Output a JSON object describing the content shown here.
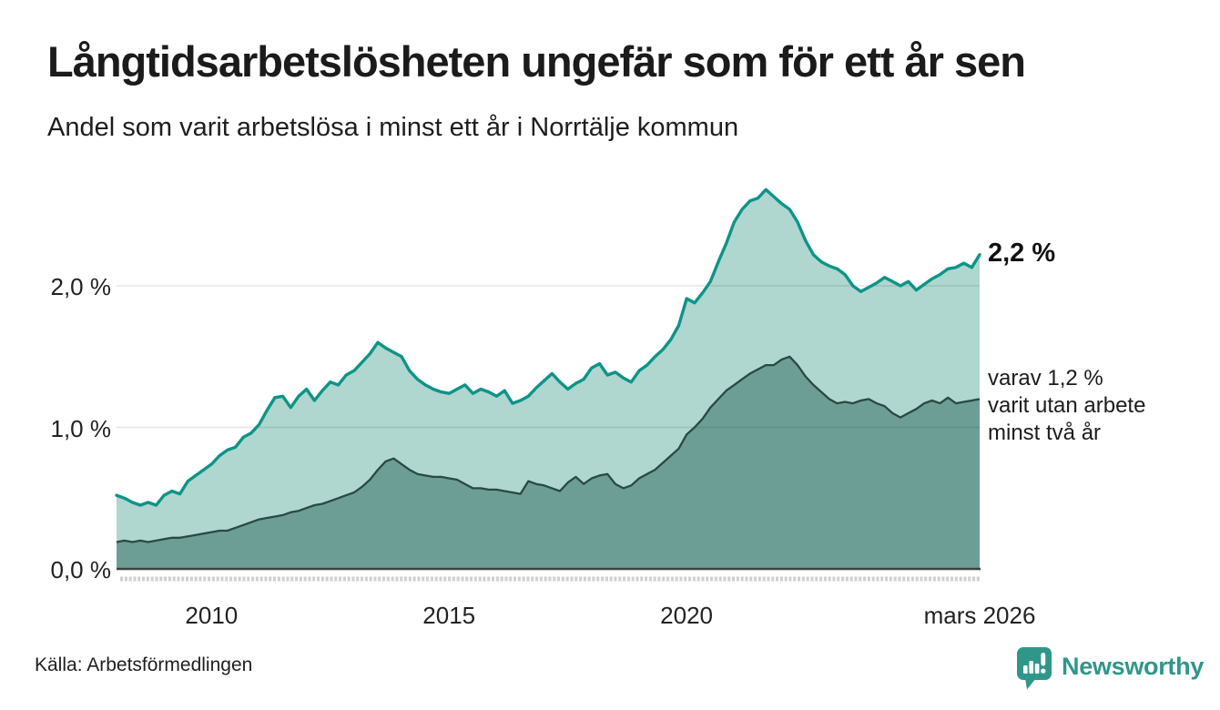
{
  "header": {
    "title": "Långtidsarbetslösheten ungefär som för ett år sen",
    "subtitle": "Andel som varit arbetslösa i minst ett år i Norrtälje kommun"
  },
  "chart_data": {
    "type": "area",
    "title": "Långtidsarbetslösheten ungefär som för ett år sen",
    "subtitle": "Andel som varit arbetslösa i minst ett år i Norrtälje kommun",
    "unit": "%",
    "xlim": [
      2008.0,
      2026.17
    ],
    "ylim": [
      0,
      2.8
    ],
    "grid": "horizontal",
    "x_frequency": "every 2 months (estimated from monthly chart)",
    "series": [
      {
        "name": "Andel arbetslösa minst ett år",
        "line_color": "#0d9488",
        "fill_color": "#afd6cf",
        "end_value_label": "2,2 %",
        "values": [
          0.52,
          0.5,
          0.47,
          0.45,
          0.47,
          0.45,
          0.52,
          0.55,
          0.53,
          0.62,
          0.66,
          0.7,
          0.74,
          0.8,
          0.84,
          0.86,
          0.93,
          0.96,
          1.02,
          1.12,
          1.21,
          1.22,
          1.14,
          1.22,
          1.27,
          1.19,
          1.26,
          1.32,
          1.3,
          1.37,
          1.4,
          1.46,
          1.52,
          1.6,
          1.56,
          1.53,
          1.5,
          1.4,
          1.34,
          1.3,
          1.27,
          1.25,
          1.24,
          1.27,
          1.3,
          1.24,
          1.27,
          1.25,
          1.22,
          1.26,
          1.17,
          1.19,
          1.22,
          1.28,
          1.33,
          1.38,
          1.32,
          1.27,
          1.31,
          1.34,
          1.42,
          1.45,
          1.37,
          1.39,
          1.35,
          1.32,
          1.4,
          1.44,
          1.5,
          1.55,
          1.62,
          1.72,
          1.91,
          1.88,
          1.95,
          2.03,
          2.17,
          2.3,
          2.45,
          2.54,
          2.6,
          2.62,
          2.68,
          2.63,
          2.58,
          2.54,
          2.45,
          2.32,
          2.22,
          2.17,
          2.14,
          2.12,
          2.08,
          2.0,
          1.96,
          1.99,
          2.02,
          2.06,
          2.03,
          2.0,
          2.03,
          1.97,
          2.01,
          2.05,
          2.08,
          2.12,
          2.13,
          2.16,
          2.13,
          2.22
        ]
      },
      {
        "name": "varav utan arbete minst två år",
        "line_color": "#284a43",
        "fill_color": "#6d9e95",
        "end_value_label": "1,2 %",
        "values": [
          0.19,
          0.2,
          0.19,
          0.2,
          0.19,
          0.2,
          0.21,
          0.22,
          0.22,
          0.23,
          0.24,
          0.25,
          0.26,
          0.27,
          0.27,
          0.29,
          0.31,
          0.33,
          0.35,
          0.36,
          0.37,
          0.38,
          0.4,
          0.41,
          0.43,
          0.45,
          0.46,
          0.48,
          0.5,
          0.52,
          0.54,
          0.58,
          0.63,
          0.7,
          0.76,
          0.78,
          0.74,
          0.7,
          0.67,
          0.66,
          0.65,
          0.65,
          0.64,
          0.63,
          0.6,
          0.57,
          0.57,
          0.56,
          0.56,
          0.55,
          0.54,
          0.53,
          0.62,
          0.6,
          0.59,
          0.57,
          0.55,
          0.61,
          0.65,
          0.6,
          0.64,
          0.66,
          0.67,
          0.6,
          0.57,
          0.59,
          0.64,
          0.67,
          0.7,
          0.75,
          0.8,
          0.85,
          0.95,
          1.0,
          1.06,
          1.14,
          1.2,
          1.26,
          1.3,
          1.34,
          1.38,
          1.41,
          1.44,
          1.44,
          1.48,
          1.5,
          1.44,
          1.36,
          1.3,
          1.25,
          1.2,
          1.17,
          1.18,
          1.17,
          1.19,
          1.2,
          1.17,
          1.15,
          1.1,
          1.07,
          1.1,
          1.13,
          1.17,
          1.19,
          1.17,
          1.21,
          1.17,
          1.18,
          1.19,
          1.2
        ]
      }
    ],
    "y_ticks": [
      {
        "value": 0.0,
        "label": "0,0 %"
      },
      {
        "value": 1.0,
        "label": "1,0 %"
      },
      {
        "value": 2.0,
        "label": "2,0 %"
      }
    ],
    "x_ticks": [
      {
        "value": 2010,
        "label": "2010"
      },
      {
        "value": 2015,
        "label": "2015"
      },
      {
        "value": 2020,
        "label": "2020"
      },
      {
        "value": 2026.17,
        "label": "mars 2026"
      }
    ],
    "annotations": {
      "end_value": "2,2 %",
      "secondary_lines": [
        "varav 1,2 %",
        "varit utan arbete",
        "minst två år"
      ]
    },
    "colors": {
      "gridline": "rgba(0,0,0,0.10)",
      "axis_line": "#3a423f",
      "tick_dashes": "#d0d0d0"
    }
  },
  "footer": {
    "source": "Källa: Arbetsförmedlingen",
    "brand": "Newsworthy",
    "brand_color": "#2f978a"
  }
}
